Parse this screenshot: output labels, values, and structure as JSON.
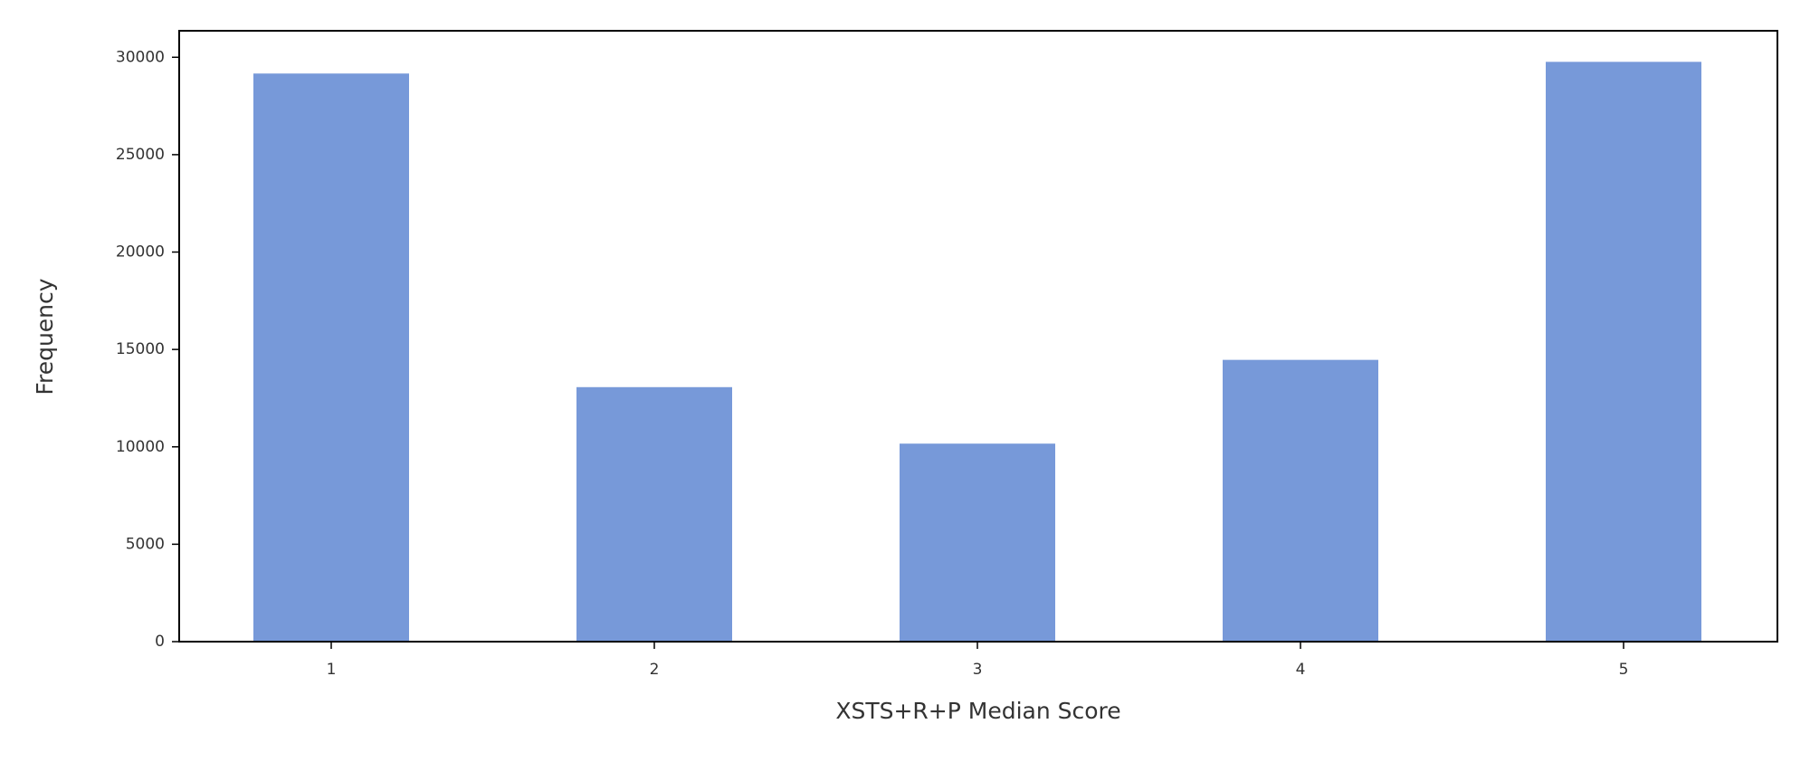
{
  "chart_data": {
    "type": "bar",
    "x_label": "XSTS+R+P Median Score",
    "y_label": "Frequency",
    "categories": [
      "1",
      "2",
      "3",
      "4",
      "5"
    ],
    "values": [
      29200,
      13100,
      10200,
      14500,
      29800
    ],
    "color": "#7799d9",
    "ylim": [
      0,
      31360
    ],
    "yticks": [
      0,
      5000,
      10000,
      15000,
      20000,
      25000,
      30000
    ],
    "grid": false
  }
}
